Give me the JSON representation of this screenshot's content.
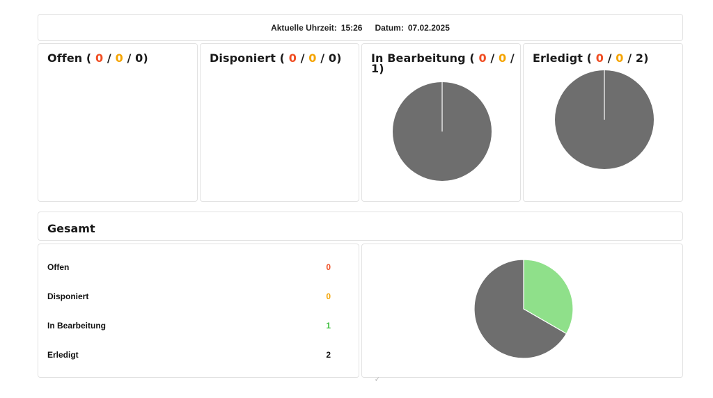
{
  "header": {
    "time_label": "Aktuelle Uhrzeit:",
    "time_value": "15:26",
    "date_label": "Datum:",
    "date_value": "07.02.2025"
  },
  "cards": [
    {
      "title": "Offen",
      "red": "0",
      "orange": "0",
      "total": "0"
    },
    {
      "title": "Disponiert",
      "red": "0",
      "orange": "0",
      "total": "0"
    },
    {
      "title": "In Bearbeitung",
      "red": "0",
      "orange": "0",
      "total": "1"
    },
    {
      "title": "Erledigt",
      "red": "0",
      "orange": "0",
      "total": "2"
    }
  ],
  "gesamt": {
    "title": "Gesamt",
    "rows": [
      {
        "label": "Offen",
        "value": "0",
        "color": "#f04e23"
      },
      {
        "label": "Disponiert",
        "value": "0",
        "color": "#f5a400"
      },
      {
        "label": "In Bearbeitung",
        "value": "1",
        "color": "#3fbf3f"
      },
      {
        "label": "Erledigt",
        "value": "2",
        "color": "#111111"
      }
    ]
  },
  "colors": {
    "red": "#f04e23",
    "orange": "#f5a400",
    "green": "#3fbf3f",
    "pie_gray": "#6e6e6e",
    "pie_green": "#8fe08a"
  },
  "chart_data": [
    {
      "type": "pie",
      "categories": [
        "In Bearbeitung"
      ],
      "values": [
        1
      ]
    },
    {
      "type": "pie",
      "categories": [
        "Erledigt"
      ],
      "values": [
        2
      ]
    },
    {
      "type": "pie",
      "categories": [
        "In Bearbeitung",
        "Erledigt"
      ],
      "values": [
        1,
        2
      ]
    }
  ]
}
